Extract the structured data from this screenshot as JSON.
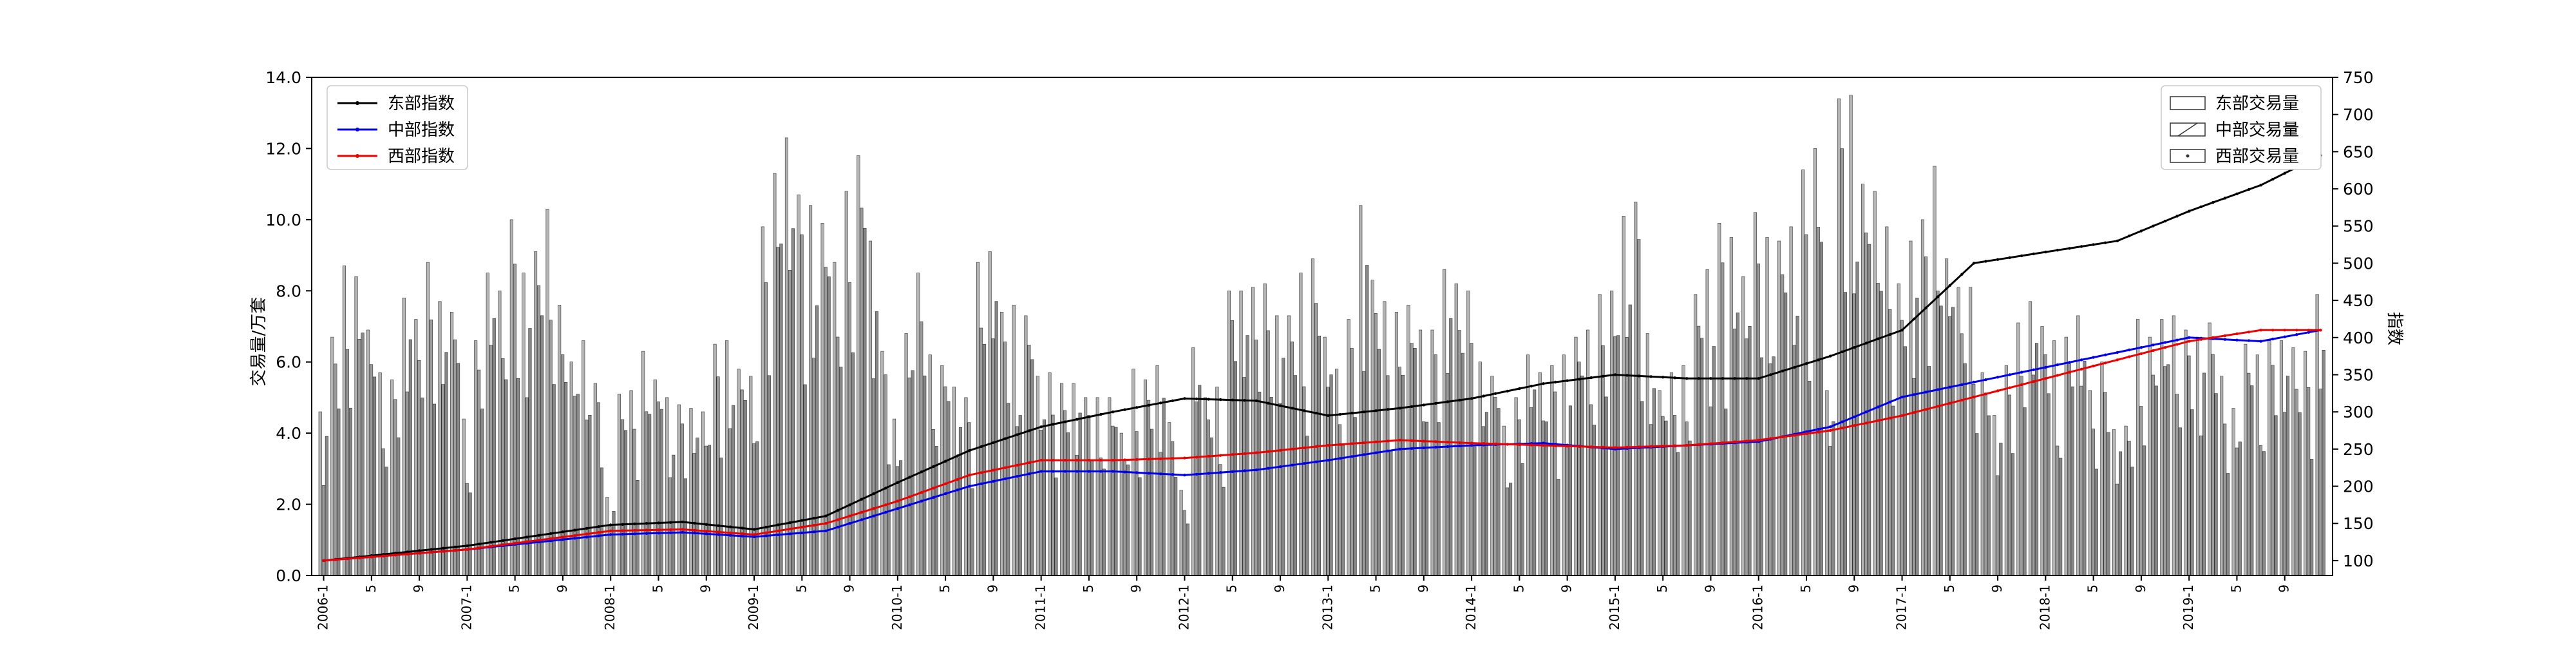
{
  "chart_data": {
    "type": "bar",
    "ylabel": "交易量/万套",
    "y2label": "指数",
    "ylim": [
      0,
      14
    ],
    "y2lim": [
      80,
      750
    ],
    "yticks": [
      "0.0",
      "2.0",
      "4.0",
      "6.0",
      "8.0",
      "10.0",
      "12.0",
      "14.0"
    ],
    "y2ticks": [
      "100",
      "150",
      "200",
      "250",
      "300",
      "350",
      "400",
      "450",
      "500",
      "550",
      "600",
      "650",
      "700",
      "750"
    ],
    "xticks": [
      "2006-1",
      "5",
      "9",
      "2007-1",
      "5",
      "9",
      "2008-1",
      "5",
      "9",
      "2009-1",
      "5",
      "9",
      "2010-1",
      "5",
      "9",
      "2011-1",
      "5",
      "9",
      "2012-1",
      "5",
      "9",
      "2013-1",
      "5",
      "9",
      "2014-1",
      "5",
      "9",
      "2015-1",
      "5",
      "9",
      "2016-1",
      "5",
      "9",
      "2017-1",
      "5",
      "9",
      "2018-1",
      "5",
      "9",
      "2019-1",
      "5",
      "9"
    ],
    "start_year": 2006,
    "months": 168,
    "legend_bars": [
      "东部交易量",
      "中部交易量",
      "西部交易量"
    ],
    "legend_lines": [
      "东部指数",
      "中部指数",
      "西部指数"
    ],
    "colors": {
      "east": "#000000",
      "central": "#0000ee",
      "west": "#ee0000",
      "bar": "#a8a8a8",
      "bar_edge": "#333333"
    },
    "east_anchors": [
      [
        0,
        100
      ],
      [
        12,
        120
      ],
      [
        24,
        148
      ],
      [
        30,
        152
      ],
      [
        36,
        142
      ],
      [
        42,
        160
      ],
      [
        48,
        205
      ],
      [
        54,
        248
      ],
      [
        60,
        280
      ],
      [
        66,
        300
      ],
      [
        72,
        318
      ],
      [
        78,
        315
      ],
      [
        84,
        295
      ],
      [
        90,
        305
      ],
      [
        96,
        318
      ],
      [
        102,
        338
      ],
      [
        108,
        350
      ],
      [
        114,
        345
      ],
      [
        120,
        345
      ],
      [
        126,
        375
      ],
      [
        132,
        410
      ],
      [
        138,
        500
      ],
      [
        144,
        515
      ],
      [
        150,
        530
      ],
      [
        156,
        570
      ],
      [
        162,
        605
      ],
      [
        167,
        645
      ]
    ],
    "central_anchors": [
      [
        0,
        100
      ],
      [
        12,
        115
      ],
      [
        24,
        135
      ],
      [
        30,
        138
      ],
      [
        36,
        132
      ],
      [
        42,
        140
      ],
      [
        48,
        170
      ],
      [
        54,
        200
      ],
      [
        60,
        220
      ],
      [
        66,
        220
      ],
      [
        72,
        215
      ],
      [
        78,
        222
      ],
      [
        84,
        235
      ],
      [
        90,
        250
      ],
      [
        96,
        255
      ],
      [
        102,
        258
      ],
      [
        108,
        250
      ],
      [
        114,
        255
      ],
      [
        120,
        260
      ],
      [
        126,
        280
      ],
      [
        132,
        320
      ],
      [
        138,
        340
      ],
      [
        144,
        360
      ],
      [
        150,
        380
      ],
      [
        156,
        400
      ],
      [
        162,
        395
      ],
      [
        167,
        410
      ]
    ],
    "west_anchors": [
      [
        0,
        100
      ],
      [
        12,
        115
      ],
      [
        24,
        140
      ],
      [
        30,
        142
      ],
      [
        36,
        135
      ],
      [
        42,
        150
      ],
      [
        48,
        180
      ],
      [
        54,
        215
      ],
      [
        60,
        235
      ],
      [
        66,
        235
      ],
      [
        72,
        238
      ],
      [
        78,
        245
      ],
      [
        84,
        255
      ],
      [
        90,
        262
      ],
      [
        96,
        258
      ],
      [
        102,
        255
      ],
      [
        108,
        252
      ],
      [
        114,
        255
      ],
      [
        120,
        262
      ],
      [
        126,
        275
      ],
      [
        132,
        295
      ],
      [
        138,
        320
      ],
      [
        144,
        345
      ],
      [
        150,
        370
      ],
      [
        156,
        395
      ],
      [
        162,
        410
      ],
      [
        167,
        410
      ]
    ],
    "east_bars": [
      4.6,
      6.7,
      8.7,
      8.4,
      6.9,
      5.7,
      5.5,
      7.8,
      7.2,
      8.8,
      7.7,
      7.4,
      4.4,
      6.6,
      8.5,
      8.0,
      10.0,
      8.5,
      9.1,
      10.3,
      7.6,
      6.0,
      6.6,
      5.4,
      2.2,
      5.1,
      5.2,
      6.3,
      5.5,
      5.0,
      4.8,
      4.7,
      4.6,
      6.5,
      6.6,
      5.8,
      5.6,
      9.8,
      11.3,
      12.3,
      10.7,
      10.4,
      9.9,
      8.8,
      10.8,
      11.8,
      9.4,
      6.3,
      4.4,
      6.8,
      8.5,
      6.2,
      5.9,
      5.3,
      5.0,
      8.8,
      9.1,
      7.4,
      7.6,
      7.3,
      5.6,
      5.7,
      5.4,
      5.4,
      5.0,
      5.0,
      5.0,
      4.0,
      5.8,
      5.5,
      5.9,
      4.3,
      2.4,
      6.4,
      5.0,
      5.3,
      8.0,
      8.0,
      8.1,
      8.2,
      7.3,
      7.3,
      8.5,
      8.9,
      6.7,
      5.8,
      7.2,
      10.4,
      8.3,
      7.7,
      7.4,
      7.6,
      6.9,
      6.9,
      8.6,
      8.2,
      8.0,
      6.0,
      5.6,
      4.2,
      5.0,
      6.2,
      5.7,
      5.9,
      6.2,
      6.7,
      6.9,
      7.9,
      8.0,
      10.1,
      10.5,
      6.8,
      5.2,
      5.7,
      5.9,
      7.9,
      8.6,
      9.9,
      9.5,
      8.4,
      10.2,
      9.5,
      9.4,
      9.8,
      11.4,
      12.0,
      5.2,
      13.4,
      13.5,
      11.0,
      10.8,
      9.8,
      8.2,
      9.4,
      10.0,
      11.5,
      8.9,
      8.1,
      8.1,
      5.7,
      4.5,
      5.9,
      7.1,
      7.7,
      7.0,
      6.6,
      6.7,
      7.3,
      5.2,
      6.0,
      4.1,
      4.2,
      7.2,
      6.7,
      7.2,
      7.3,
      6.9,
      6.7,
      7.1,
      5.6,
      4.7,
      6.5,
      6.2,
      6.6,
      6.6,
      6.4,
      6.3,
      7.9
    ]
  }
}
